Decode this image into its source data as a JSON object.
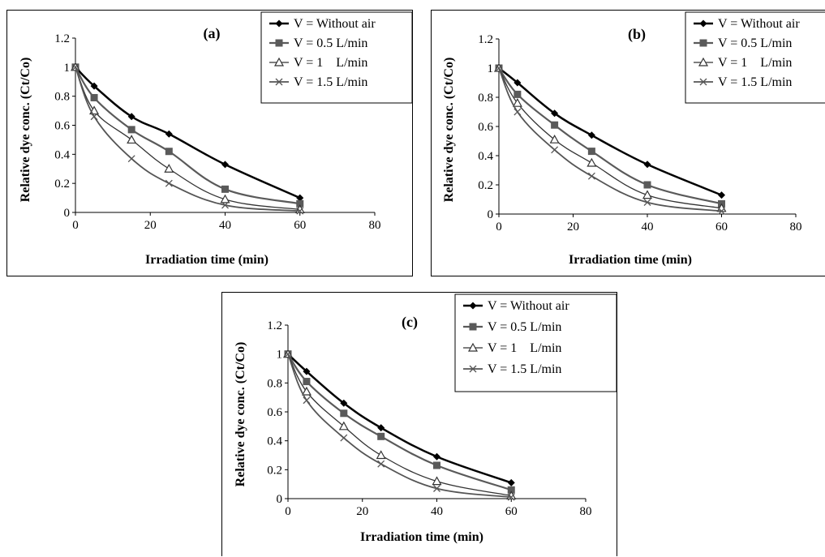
{
  "chart_data": [
    {
      "type": "line",
      "panel_label": "(a)",
      "xlabel": "Irradiation time (min)",
      "ylabel": "Relative dye conc. (Ct/Co)",
      "xlim": [
        0,
        80
      ],
      "ylim": [
        0,
        1.2
      ],
      "x_ticks": [
        "0",
        "20",
        "40",
        "60",
        "80"
      ],
      "y_ticks": [
        "0",
        "0.2",
        "0.4",
        "0.6",
        "0.8",
        "1",
        "1.2"
      ],
      "legend_position": "top-right",
      "grid": false,
      "x": [
        0,
        5,
        15,
        25,
        40,
        60
      ],
      "series": [
        {
          "name": "V = Without air",
          "marker": "diamond",
          "color": "#000000",
          "values": [
            1.0,
            0.87,
            0.66,
            0.54,
            0.33,
            0.1
          ]
        },
        {
          "name": "V = 0.5 L/min",
          "marker": "square",
          "color": "#5a5a5a",
          "values": [
            1.0,
            0.79,
            0.57,
            0.42,
            0.16,
            0.06
          ]
        },
        {
          "name": "V = 1    L/min",
          "marker": "triangle",
          "color": "#333333",
          "values": [
            1.0,
            0.7,
            0.5,
            0.3,
            0.09,
            0.02
          ]
        },
        {
          "name": "V = 1.5 L/min",
          "marker": "x",
          "color": "#555555",
          "values": [
            1.0,
            0.66,
            0.37,
            0.2,
            0.05,
            0.01
          ]
        }
      ]
    },
    {
      "type": "line",
      "panel_label": "(b)",
      "xlabel": "Irradiation time (min)",
      "ylabel": "Relative dye conc. (Ct/Co)",
      "xlim": [
        0,
        80
      ],
      "ylim": [
        0,
        1.2
      ],
      "x_ticks": [
        "0",
        "20",
        "40",
        "60",
        "80"
      ],
      "y_ticks": [
        "0",
        "0.2",
        "0.4",
        "0.6",
        "0.8",
        "1",
        "1.2"
      ],
      "legend_position": "top-right",
      "grid": false,
      "x": [
        0,
        5,
        15,
        25,
        40,
        60
      ],
      "series": [
        {
          "name": "V = Without air",
          "marker": "diamond",
          "color": "#000000",
          "values": [
            1.0,
            0.9,
            0.69,
            0.54,
            0.34,
            0.13
          ]
        },
        {
          "name": "V = 0.5 L/min",
          "marker": "square",
          "color": "#5a5a5a",
          "values": [
            1.0,
            0.82,
            0.61,
            0.43,
            0.2,
            0.07
          ]
        },
        {
          "name": "V = 1    L/min",
          "marker": "triangle",
          "color": "#333333",
          "values": [
            1.0,
            0.76,
            0.51,
            0.35,
            0.13,
            0.04
          ]
        },
        {
          "name": "V = 1.5 L/min",
          "marker": "x",
          "color": "#555555",
          "values": [
            1.0,
            0.7,
            0.44,
            0.26,
            0.08,
            0.02
          ]
        }
      ]
    },
    {
      "type": "line",
      "panel_label": "(c)",
      "xlabel": "Irradiation time (min)",
      "ylabel": "Relative dye conc. (Ct/Co)",
      "xlim": [
        0,
        80
      ],
      "ylim": [
        0,
        1.2
      ],
      "x_ticks": [
        "0",
        "20",
        "40",
        "60",
        "80"
      ],
      "y_ticks": [
        "0",
        "0.2",
        "0.4",
        "0.6",
        "0.8",
        "1",
        "1.2"
      ],
      "legend_position": "top-right",
      "grid": false,
      "x": [
        0,
        5,
        15,
        25,
        40,
        60
      ],
      "series": [
        {
          "name": "V = Without air",
          "marker": "diamond",
          "color": "#000000",
          "values": [
            1.0,
            0.88,
            0.66,
            0.49,
            0.29,
            0.11
          ]
        },
        {
          "name": "V = 0.5 L/min",
          "marker": "square",
          "color": "#5a5a5a",
          "values": [
            1.0,
            0.81,
            0.59,
            0.43,
            0.23,
            0.06
          ]
        },
        {
          "name": "V = 1    L/min",
          "marker": "triangle",
          "color": "#333333",
          "values": [
            1.0,
            0.74,
            0.5,
            0.3,
            0.12,
            0.02
          ]
        },
        {
          "name": "V = 1.5 L/min",
          "marker": "x",
          "color": "#555555",
          "values": [
            1.0,
            0.68,
            0.42,
            0.24,
            0.07,
            0.01
          ]
        }
      ]
    }
  ]
}
